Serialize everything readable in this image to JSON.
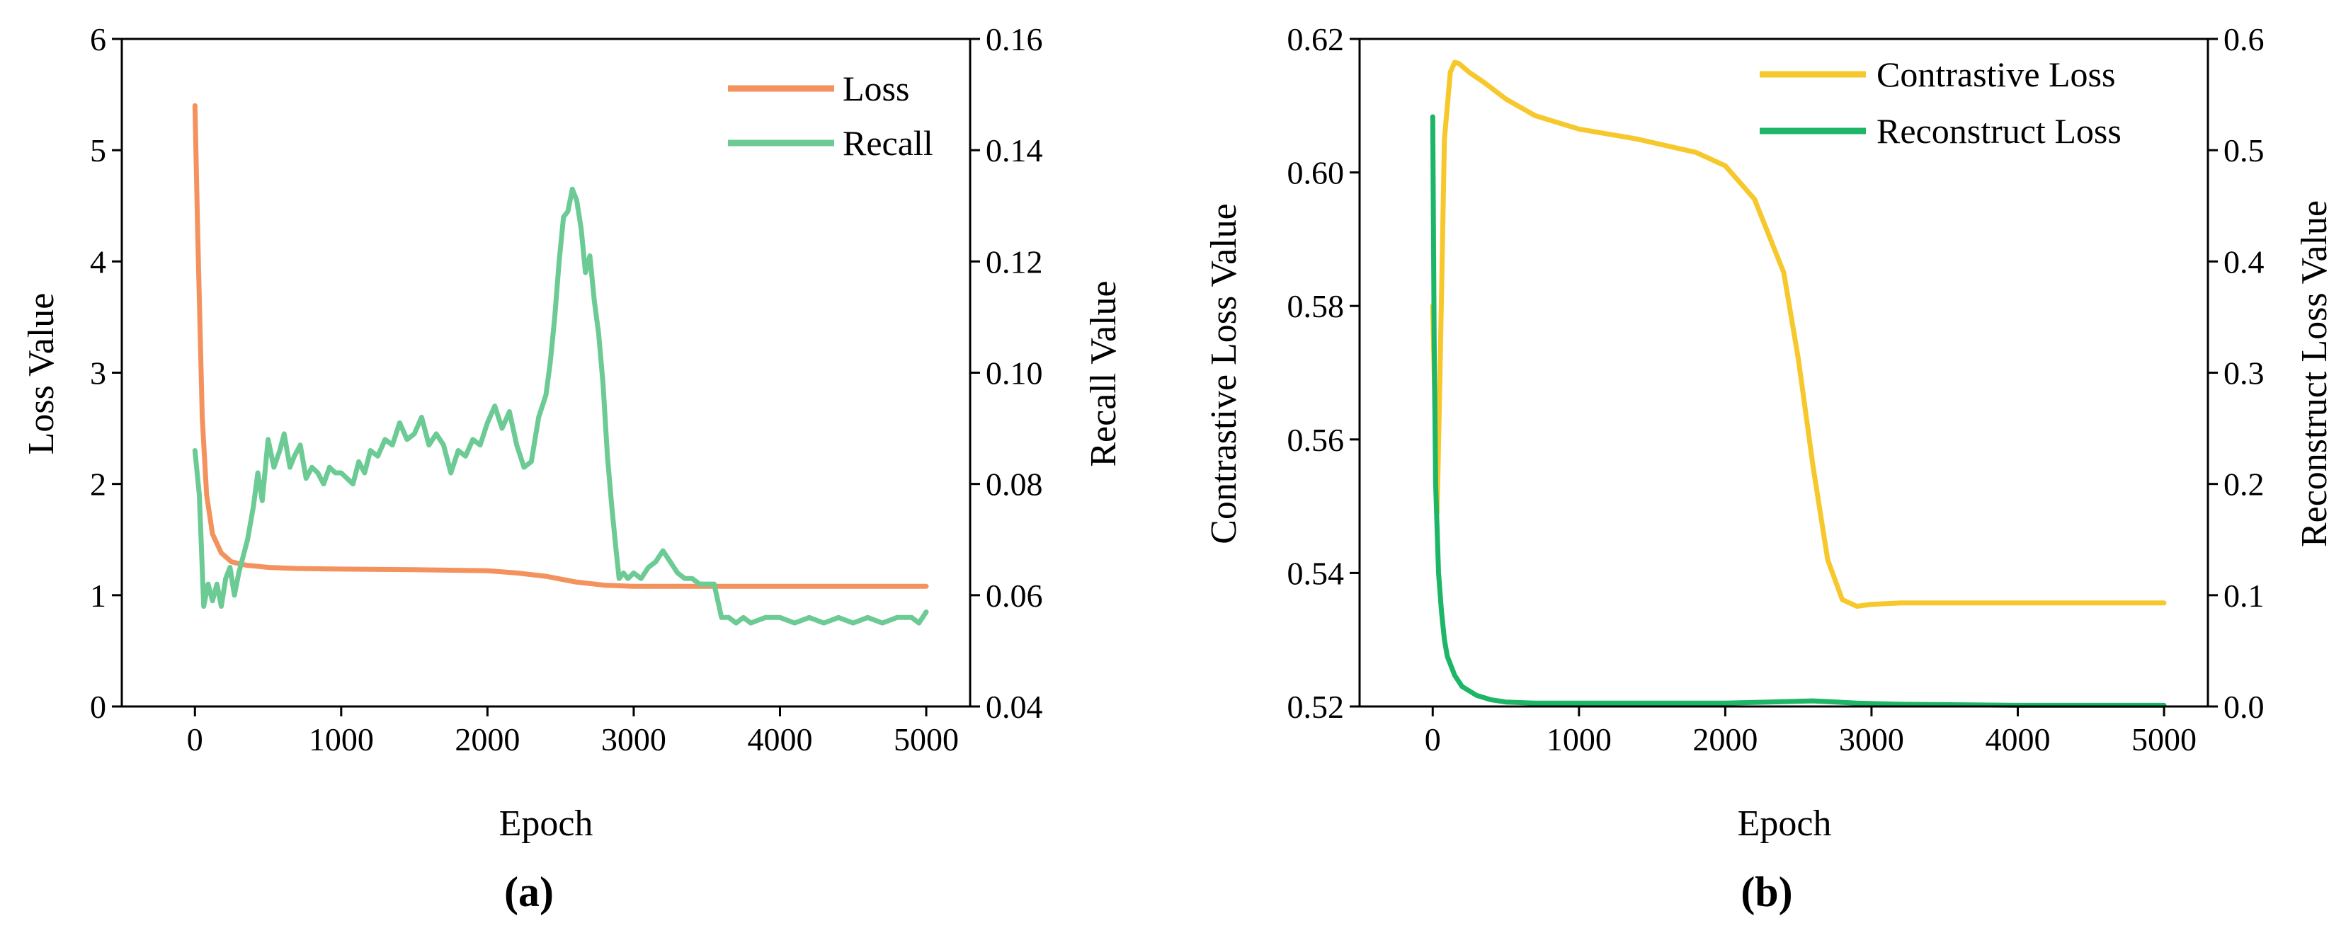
{
  "figure": {
    "panels": [
      {
        "label": "(a)"
      },
      {
        "label": "(b)"
      }
    ]
  },
  "chart_data": [
    {
      "type": "line",
      "panel": "(a)",
      "xlabel": "Epoch",
      "ylabel": "Loss Value",
      "y2label": "Recall Value",
      "xlim": [
        -500,
        5300
      ],
      "ylim": [
        0,
        6
      ],
      "y2lim": [
        0.04,
        0.16
      ],
      "xticks": [
        0,
        1000,
        2000,
        3000,
        4000,
        5000
      ],
      "yticks": [
        0,
        1,
        2,
        3,
        4,
        5,
        6
      ],
      "y2ticks": [
        0.04,
        0.06,
        0.08,
        0.1,
        0.12,
        0.14,
        0.16
      ],
      "legend_position": "top-right",
      "series": [
        {
          "name": "Loss",
          "axis": "left",
          "color": "#F4925E",
          "x": [
            0,
            20,
            50,
            80,
            120,
            180,
            250,
            350,
            500,
            700,
            1000,
            1500,
            2000,
            2200,
            2400,
            2600,
            2800,
            2900,
            3000,
            3500,
            4000,
            5000
          ],
          "y": [
            5.4,
            4.2,
            2.6,
            1.9,
            1.55,
            1.38,
            1.3,
            1.27,
            1.25,
            1.24,
            1.235,
            1.23,
            1.22,
            1.2,
            1.17,
            1.12,
            1.09,
            1.085,
            1.08,
            1.08,
            1.08,
            1.08
          ]
        },
        {
          "name": "Recall",
          "axis": "right",
          "color": "#6CCB94",
          "x": [
            0,
            30,
            60,
            90,
            120,
            150,
            180,
            210,
            240,
            270,
            300,
            330,
            360,
            400,
            430,
            460,
            500,
            540,
            580,
            610,
            650,
            680,
            720,
            760,
            800,
            840,
            880,
            920,
            960,
            1000,
            1040,
            1080,
            1120,
            1160,
            1200,
            1250,
            1300,
            1350,
            1400,
            1450,
            1500,
            1550,
            1600,
            1650,
            1700,
            1750,
            1800,
            1850,
            1900,
            1950,
            2000,
            2050,
            2100,
            2150,
            2200,
            2250,
            2300,
            2350,
            2400,
            2430,
            2460,
            2490,
            2520,
            2550,
            2580,
            2610,
            2640,
            2670,
            2700,
            2730,
            2760,
            2790,
            2820,
            2850,
            2880,
            2900,
            2930,
            2960,
            3000,
            3050,
            3100,
            3150,
            3200,
            3250,
            3300,
            3350,
            3400,
            3450,
            3500,
            3550,
            3600,
            3650,
            3700,
            3750,
            3800,
            3900,
            4000,
            4100,
            4200,
            4300,
            4400,
            4500,
            4600,
            4700,
            4800,
            4900,
            4950,
            5000
          ],
          "y": [
            0.086,
            0.078,
            0.058,
            0.062,
            0.059,
            0.062,
            0.058,
            0.063,
            0.065,
            0.06,
            0.064,
            0.067,
            0.07,
            0.076,
            0.082,
            0.077,
            0.088,
            0.083,
            0.086,
            0.089,
            0.083,
            0.085,
            0.087,
            0.081,
            0.083,
            0.082,
            0.08,
            0.083,
            0.082,
            0.082,
            0.081,
            0.08,
            0.084,
            0.082,
            0.086,
            0.085,
            0.088,
            0.087,
            0.091,
            0.088,
            0.089,
            0.092,
            0.087,
            0.089,
            0.087,
            0.082,
            0.086,
            0.085,
            0.088,
            0.087,
            0.091,
            0.094,
            0.09,
            0.093,
            0.087,
            0.083,
            0.084,
            0.092,
            0.096,
            0.102,
            0.11,
            0.12,
            0.128,
            0.129,
            0.133,
            0.131,
            0.126,
            0.118,
            0.121,
            0.113,
            0.107,
            0.098,
            0.085,
            0.076,
            0.068,
            0.063,
            0.064,
            0.063,
            0.064,
            0.063,
            0.065,
            0.066,
            0.068,
            0.066,
            0.064,
            0.063,
            0.063,
            0.062,
            0.062,
            0.062,
            0.056,
            0.056,
            0.055,
            0.056,
            0.055,
            0.056,
            0.056,
            0.055,
            0.056,
            0.055,
            0.056,
            0.055,
            0.056,
            0.055,
            0.056,
            0.056,
            0.055,
            0.057
          ]
        }
      ]
    },
    {
      "type": "line",
      "panel": "(b)",
      "xlabel": "Epoch",
      "ylabel": "Contrastive Loss Value",
      "y2label": "Reconstruct Loss Value",
      "xlim": [
        -500,
        5300
      ],
      "ylim": [
        0.52,
        0.62
      ],
      "y2lim": [
        0,
        0.6
      ],
      "xticks": [
        0,
        1000,
        2000,
        3000,
        4000,
        5000
      ],
      "yticks": [
        0.52,
        0.54,
        0.56,
        0.58,
        0.6,
        0.62
      ],
      "y2ticks": [
        0.0,
        0.1,
        0.2,
        0.3,
        0.4,
        0.5,
        0.6
      ],
      "legend_position": "top-right",
      "series": [
        {
          "name": "Contrastive Loss",
          "axis": "left",
          "color": "#F7C82B",
          "x": [
            0,
            30,
            50,
            80,
            120,
            150,
            180,
            250,
            350,
            500,
            700,
            1000,
            1400,
            1800,
            2000,
            2200,
            2400,
            2500,
            2600,
            2700,
            2800,
            2900,
            3000,
            3200,
            3500,
            4000,
            5000
          ],
          "y": [
            0.58,
            0.549,
            0.57,
            0.605,
            0.615,
            0.6165,
            0.6163,
            0.615,
            0.6135,
            0.611,
            0.6085,
            0.6065,
            0.605,
            0.603,
            0.601,
            0.596,
            0.585,
            0.572,
            0.556,
            0.542,
            0.536,
            0.535,
            0.5353,
            0.5355,
            0.5355,
            0.5355,
            0.5355
          ]
        },
        {
          "name": "Reconstruct Loss",
          "axis": "right",
          "color": "#1DB566",
          "x": [
            0,
            10,
            20,
            40,
            60,
            80,
            100,
            150,
            200,
            300,
            400,
            500,
            700,
            1000,
            2000,
            2300,
            2600,
            2900,
            3200,
            4000,
            5000
          ],
          "y": [
            0.53,
            0.33,
            0.2,
            0.12,
            0.085,
            0.06,
            0.045,
            0.028,
            0.018,
            0.01,
            0.006,
            0.004,
            0.003,
            0.003,
            0.003,
            0.004,
            0.005,
            0.003,
            0.002,
            0.001,
            0.001
          ]
        }
      ]
    }
  ]
}
